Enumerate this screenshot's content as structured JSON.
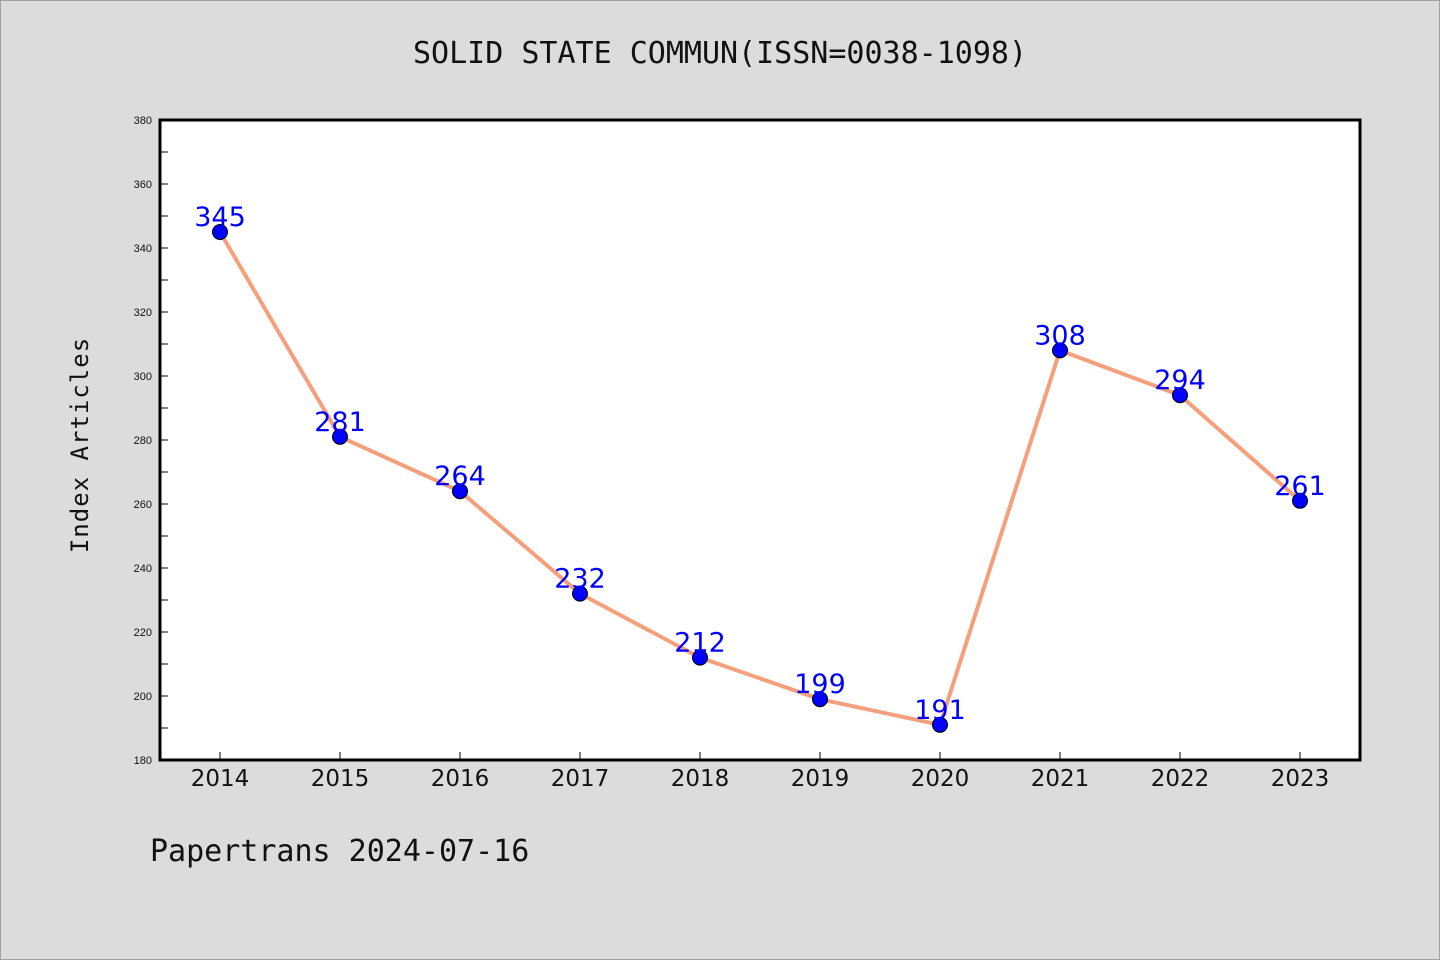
{
  "chart_data": {
    "type": "line",
    "title": "SOLID STATE COMMUN(ISSN=0038-1098)",
    "xlabel": "",
    "ylabel": "Index Articles",
    "categories": [
      "2014",
      "2015",
      "2016",
      "2017",
      "2018",
      "2019",
      "2020",
      "2021",
      "2022",
      "2023"
    ],
    "values": [
      345,
      281,
      264,
      232,
      212,
      199,
      191,
      308,
      294,
      261
    ],
    "ylim": [
      180,
      380
    ],
    "yticks": [
      180,
      200,
      220,
      240,
      260,
      280,
      300,
      320,
      340,
      360,
      380
    ],
    "grid": false,
    "line_color": "#f4a07c",
    "marker_color": "#0000ff",
    "label_color": "#0000ff"
  },
  "footer": "Papertrans 2024-07-16"
}
